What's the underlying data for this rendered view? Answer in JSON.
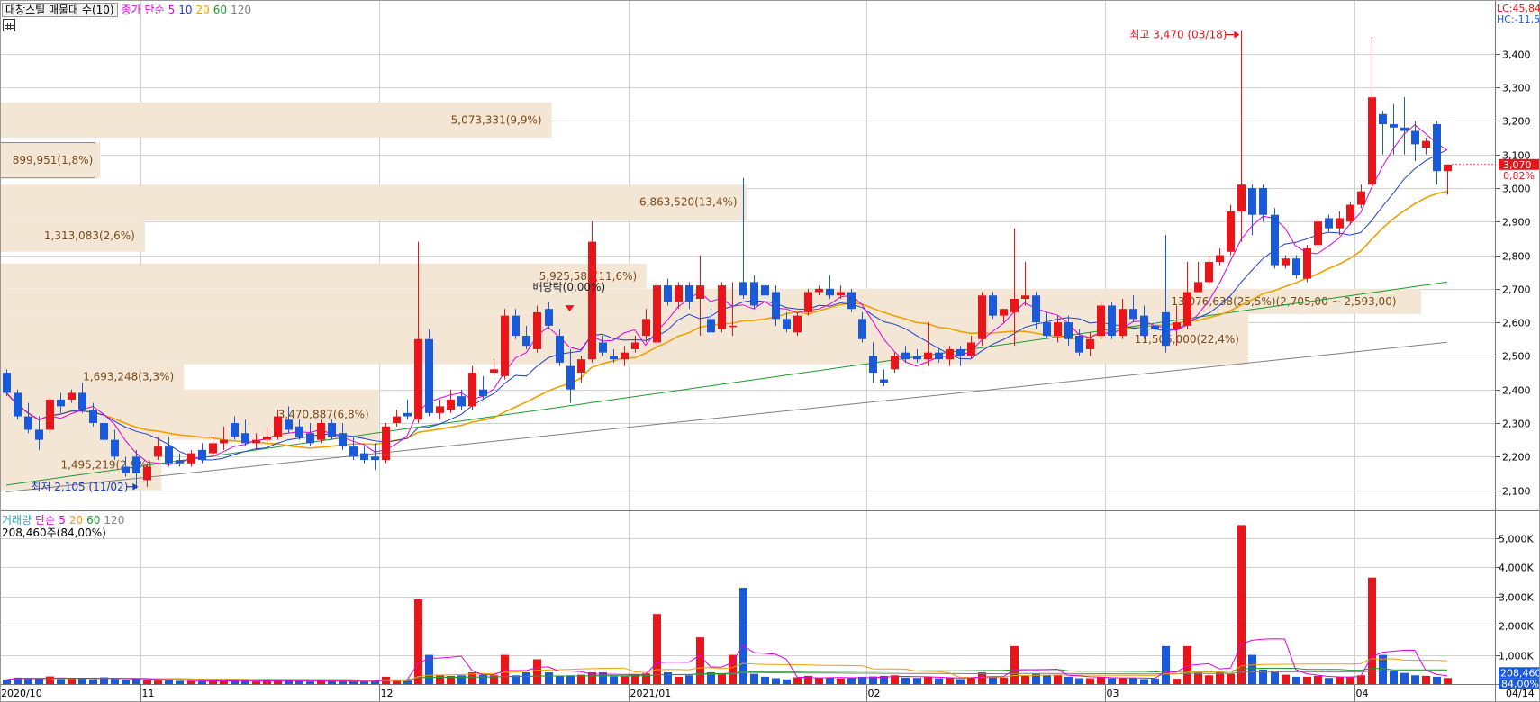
{
  "price_legend": {
    "title": "대창스틸 매물대 수(10)",
    "ma_label": "종가 단순",
    "periods": [
      "5",
      "10",
      "20",
      "60",
      "120"
    ],
    "colors": [
      "#e000e0",
      "#1f3fd0",
      "#f0a000",
      "#1f9a2f",
      "#808080"
    ]
  },
  "volume_legend": {
    "label": "거래량",
    "ma_label": "단순",
    "periods": [
      "5",
      "20",
      "60",
      "120"
    ],
    "colors": [
      "#e000e0",
      "#f0a000",
      "#1f9a2f",
      "#808080"
    ],
    "current": "208,460주(84,00%)"
  },
  "right_info": {
    "lc": "LC:45,84",
    "hc": "HC:-11,5"
  },
  "current_price": {
    "value": "3,070",
    "change": "0,82%"
  },
  "current_volume": {
    "value": "208,460",
    "pct": "84,00%"
  },
  "annotations": {
    "high": "최고 3,470 (03/18)",
    "low": "최저 2,105 (11/02)",
    "dividend": "배당락(0,00%)"
  },
  "x_labels": [
    "2020/10",
    "11",
    "12",
    "2021/01",
    "02",
    "03",
    "04",
    "04/14"
  ],
  "colors": {
    "up": "#e8161b",
    "down": "#1a5ad8",
    "band": "#f3e6d5",
    "band_text": "#7a4a1a",
    "grid": "#d0d0d0"
  },
  "chart_data": {
    "type": "candlestick",
    "price_axis": {
      "ylim": [
        2040,
        3560
      ],
      "ticks": [
        "2,100",
        "2,200",
        "2,300",
        "2,400",
        "2,500",
        "2,600",
        "2,700",
        "2,800",
        "2,900",
        "3,000",
        "3,100",
        "3,200",
        "3,300",
        "3,400"
      ]
    },
    "volume_axis": {
      "ylim": [
        0,
        5800
      ],
      "ticks": [
        "1,000K",
        "2,000K",
        "3,000K",
        "4,000K",
        "5,000K"
      ]
    },
    "volume_profile": [
      {
        "low": 2100,
        "high": 2250,
        "label": "1,495,219(2,9%)"
      },
      {
        "low": 2250,
        "high": 2400,
        "label": "3,470,887(6,8%)"
      },
      {
        "low": 2400,
        "high": 2475,
        "label": "1,693,248(3,3%)"
      },
      {
        "low": 2475,
        "high": 2625,
        "label": "11,505,000(22,4%)"
      },
      {
        "low": 2625,
        "high": 2700,
        "label": "13,076,638(25,5%)(2,705,00 ~ 2,593,00)"
      },
      {
        "low": 2700,
        "high": 2775,
        "label": "5,925,588(11,6%)"
      },
      {
        "low": 2810,
        "high": 2905,
        "label": "1,313,083(2,6%)"
      },
      {
        "low": 2905,
        "high": 3010,
        "label": "6,863,520(13,4%)"
      },
      {
        "low": 3030,
        "high": 3135,
        "label": "899,951(1,8%)"
      },
      {
        "low": 3150,
        "high": 3255,
        "label": "5,073,331(9,9%)"
      }
    ],
    "candles": [
      {
        "o": 2450,
        "h": 2460,
        "c": 2390,
        "l": 2380,
        "v": 150
      },
      {
        "o": 2390,
        "h": 2400,
        "c": 2320,
        "l": 2310,
        "v": 220
      },
      {
        "o": 2320,
        "h": 2360,
        "c": 2280,
        "l": 2270,
        "v": 200
      },
      {
        "o": 2280,
        "h": 2320,
        "c": 2250,
        "l": 2220,
        "v": 180
      },
      {
        "o": 2280,
        "h": 2380,
        "c": 2370,
        "l": 2270,
        "v": 260
      },
      {
        "o": 2370,
        "h": 2390,
        "c": 2350,
        "l": 2330,
        "v": 170
      },
      {
        "o": 2370,
        "h": 2400,
        "c": 2390,
        "l": 2360,
        "v": 190
      },
      {
        "o": 2390,
        "h": 2420,
        "c": 2340,
        "l": 2330,
        "v": 210
      },
      {
        "o": 2340,
        "h": 2360,
        "c": 2300,
        "l": 2290,
        "v": 160
      },
      {
        "o": 2300,
        "h": 2320,
        "c": 2250,
        "l": 2240,
        "v": 230
      },
      {
        "o": 2250,
        "h": 2280,
        "c": 2200,
        "l": 2190,
        "v": 180
      },
      {
        "o": 2170,
        "h": 2200,
        "c": 2150,
        "l": 2140,
        "v": 150
      },
      {
        "o": 2200,
        "h": 2220,
        "c": 2150,
        "l": 2105,
        "v": 190
      },
      {
        "o": 2130,
        "h": 2180,
        "c": 2170,
        "l": 2110,
        "v": 140
      },
      {
        "o": 2200,
        "h": 2260,
        "c": 2230,
        "l": 2190,
        "v": 120
      },
      {
        "o": 2230,
        "h": 2260,
        "c": 2180,
        "l": 2170,
        "v": 130
      },
      {
        "o": 2190,
        "h": 2210,
        "c": 2180,
        "l": 2170,
        "v": 110
      },
      {
        "o": 2180,
        "h": 2220,
        "c": 2210,
        "l": 2170,
        "v": 100
      },
      {
        "o": 2220,
        "h": 2240,
        "c": 2190,
        "l": 2180,
        "v": 95
      },
      {
        "o": 2210,
        "h": 2260,
        "c": 2240,
        "l": 2200,
        "v": 110
      },
      {
        "o": 2240,
        "h": 2290,
        "c": 2250,
        "l": 2220,
        "v": 130
      },
      {
        "o": 2300,
        "h": 2320,
        "c": 2260,
        "l": 2250,
        "v": 120
      },
      {
        "o": 2270,
        "h": 2310,
        "c": 2240,
        "l": 2230,
        "v": 100
      },
      {
        "o": 2240,
        "h": 2270,
        "c": 2250,
        "l": 2220,
        "v": 90
      },
      {
        "o": 2250,
        "h": 2290,
        "c": 2260,
        "l": 2240,
        "v": 95
      },
      {
        "o": 2260,
        "h": 2340,
        "c": 2320,
        "l": 2250,
        "v": 150
      },
      {
        "o": 2310,
        "h": 2350,
        "c": 2280,
        "l": 2270,
        "v": 120
      },
      {
        "o": 2290,
        "h": 2310,
        "c": 2260,
        "l": 2250,
        "v": 100
      },
      {
        "o": 2270,
        "h": 2300,
        "c": 2240,
        "l": 2230,
        "v": 90
      },
      {
        "o": 2250,
        "h": 2310,
        "c": 2300,
        "l": 2240,
        "v": 110
      },
      {
        "o": 2300,
        "h": 2310,
        "c": 2260,
        "l": 2250,
        "v": 95
      },
      {
        "o": 2270,
        "h": 2300,
        "c": 2230,
        "l": 2220,
        "v": 100
      },
      {
        "o": 2230,
        "h": 2260,
        "c": 2200,
        "l": 2190,
        "v": 90
      },
      {
        "o": 2210,
        "h": 2230,
        "c": 2190,
        "l": 2180,
        "v": 85
      },
      {
        "o": 2200,
        "h": 2240,
        "c": 2190,
        "l": 2160,
        "v": 120
      },
      {
        "o": 2190,
        "h": 2300,
        "c": 2290,
        "l": 2180,
        "v": 250
      },
      {
        "o": 2300,
        "h": 2340,
        "c": 2320,
        "l": 2290,
        "v": 140
      },
      {
        "o": 2330,
        "h": 2370,
        "c": 2320,
        "l": 2310,
        "v": 120
      },
      {
        "o": 2310,
        "h": 2840,
        "c": 2550,
        "l": 2300,
        "v": 2900
      },
      {
        "o": 2550,
        "h": 2580,
        "c": 2330,
        "l": 2320,
        "v": 1000
      },
      {
        "o": 2330,
        "h": 2370,
        "c": 2350,
        "l": 2310,
        "v": 300
      },
      {
        "o": 2340,
        "h": 2400,
        "c": 2370,
        "l": 2330,
        "v": 280
      },
      {
        "o": 2380,
        "h": 2400,
        "c": 2350,
        "l": 2340,
        "v": 300
      },
      {
        "o": 2350,
        "h": 2470,
        "c": 2450,
        "l": 2340,
        "v": 400
      },
      {
        "o": 2400,
        "h": 2440,
        "c": 2380,
        "l": 2370,
        "v": 320
      },
      {
        "o": 2450,
        "h": 2490,
        "c": 2460,
        "l": 2440,
        "v": 300
      },
      {
        "o": 2440,
        "h": 2640,
        "c": 2620,
        "l": 2430,
        "v": 1000
      },
      {
        "o": 2620,
        "h": 2640,
        "c": 2560,
        "l": 2550,
        "v": 300
      },
      {
        "o": 2560,
        "h": 2590,
        "c": 2530,
        "l": 2520,
        "v": 400
      },
      {
        "o": 2520,
        "h": 2650,
        "c": 2630,
        "l": 2510,
        "v": 850
      },
      {
        "o": 2640,
        "h": 2660,
        "c": 2590,
        "l": 2580,
        "v": 400
      },
      {
        "o": 2560,
        "h": 2580,
        "c": 2480,
        "l": 2470,
        "v": 280
      },
      {
        "o": 2470,
        "h": 2520,
        "c": 2400,
        "l": 2360,
        "v": 300
      },
      {
        "o": 2450,
        "h": 2500,
        "c": 2490,
        "l": 2420,
        "v": 320
      },
      {
        "o": 2490,
        "h": 2900,
        "c": 2840,
        "l": 2480,
        "v": 400
      },
      {
        "o": 2540,
        "h": 2560,
        "c": 2510,
        "l": 2500,
        "v": 400
      },
      {
        "o": 2500,
        "h": 2520,
        "c": 2490,
        "l": 2480,
        "v": 260
      },
      {
        "o": 2490,
        "h": 2530,
        "c": 2510,
        "l": 2470,
        "v": 260
      },
      {
        "o": 2520,
        "h": 2560,
        "c": 2540,
        "l": 2510,
        "v": 340
      },
      {
        "o": 2560,
        "h": 2640,
        "c": 2610,
        "l": 2540,
        "v": 360
      },
      {
        "o": 2540,
        "h": 2720,
        "c": 2710,
        "l": 2530,
        "v": 2400
      },
      {
        "o": 2710,
        "h": 2730,
        "c": 2660,
        "l": 2650,
        "v": 400
      },
      {
        "o": 2660,
        "h": 2720,
        "c": 2710,
        "l": 2640,
        "v": 250
      },
      {
        "o": 2710,
        "h": 2720,
        "c": 2660,
        "l": 2640,
        "v": 300
      },
      {
        "o": 2670,
        "h": 2800,
        "c": 2710,
        "l": 2560,
        "v": 1600
      },
      {
        "o": 2610,
        "h": 2640,
        "c": 2570,
        "l": 2560,
        "v": 400
      },
      {
        "o": 2580,
        "h": 2720,
        "c": 2710,
        "l": 2570,
        "v": 350
      },
      {
        "o": 2590,
        "h": 2720,
        "c": 2590,
        "l": 2560,
        "v": 1000
      },
      {
        "o": 2720,
        "h": 3030,
        "c": 2680,
        "l": 2670,
        "v": 3300
      },
      {
        "o": 2720,
        "h": 2740,
        "c": 2650,
        "l": 2640,
        "v": 350
      },
      {
        "o": 2710,
        "h": 2720,
        "c": 2680,
        "l": 2670,
        "v": 250
      },
      {
        "o": 2690,
        "h": 2710,
        "c": 2610,
        "l": 2590,
        "v": 200
      },
      {
        "o": 2610,
        "h": 2630,
        "c": 2580,
        "l": 2570,
        "v": 160
      },
      {
        "o": 2570,
        "h": 2630,
        "c": 2620,
        "l": 2560,
        "v": 230
      },
      {
        "o": 2630,
        "h": 2700,
        "c": 2690,
        "l": 2620,
        "v": 280
      },
      {
        "o": 2690,
        "h": 2710,
        "c": 2700,
        "l": 2680,
        "v": 200
      },
      {
        "o": 2700,
        "h": 2740,
        "c": 2680,
        "l": 2670,
        "v": 220
      },
      {
        "o": 2680,
        "h": 2710,
        "c": 2690,
        "l": 2670,
        "v": 190
      },
      {
        "o": 2690,
        "h": 2700,
        "c": 2640,
        "l": 2630,
        "v": 210
      },
      {
        "o": 2610,
        "h": 2630,
        "c": 2550,
        "l": 2540,
        "v": 250
      },
      {
        "o": 2500,
        "h": 2540,
        "c": 2450,
        "l": 2420,
        "v": 260
      },
      {
        "o": 2430,
        "h": 2460,
        "c": 2420,
        "l": 2410,
        "v": 280
      },
      {
        "o": 2460,
        "h": 2510,
        "c": 2500,
        "l": 2450,
        "v": 300
      },
      {
        "o": 2510,
        "h": 2530,
        "c": 2490,
        "l": 2480,
        "v": 220
      },
      {
        "o": 2500,
        "h": 2520,
        "c": 2490,
        "l": 2480,
        "v": 210
      },
      {
        "o": 2490,
        "h": 2600,
        "c": 2510,
        "l": 2470,
        "v": 240
      },
      {
        "o": 2510,
        "h": 2520,
        "c": 2490,
        "l": 2480,
        "v": 200
      },
      {
        "o": 2490,
        "h": 2530,
        "c": 2520,
        "l": 2470,
        "v": 230
      },
      {
        "o": 2520,
        "h": 2530,
        "c": 2500,
        "l": 2470,
        "v": 170
      },
      {
        "o": 2500,
        "h": 2560,
        "c": 2540,
        "l": 2490,
        "v": 220
      },
      {
        "o": 2550,
        "h": 2690,
        "c": 2680,
        "l": 2530,
        "v": 400
      },
      {
        "o": 2680,
        "h": 2690,
        "c": 2620,
        "l": 2610,
        "v": 250
      },
      {
        "o": 2620,
        "h": 2640,
        "c": 2640,
        "l": 2600,
        "v": 220
      },
      {
        "o": 2630,
        "h": 2880,
        "c": 2670,
        "l": 2530,
        "v": 1300
      },
      {
        "o": 2670,
        "h": 2780,
        "c": 2680,
        "l": 2650,
        "v": 300
      },
      {
        "o": 2680,
        "h": 2690,
        "c": 2600,
        "l": 2580,
        "v": 350
      },
      {
        "o": 2600,
        "h": 2630,
        "c": 2560,
        "l": 2550,
        "v": 300
      },
      {
        "o": 2560,
        "h": 2620,
        "c": 2600,
        "l": 2540,
        "v": 300
      },
      {
        "o": 2600,
        "h": 2620,
        "c": 2550,
        "l": 2530,
        "v": 250
      },
      {
        "o": 2560,
        "h": 2580,
        "c": 2510,
        "l": 2500,
        "v": 200
      },
      {
        "o": 2520,
        "h": 2570,
        "c": 2550,
        "l": 2500,
        "v": 200
      },
      {
        "o": 2560,
        "h": 2660,
        "c": 2650,
        "l": 2550,
        "v": 250
      },
      {
        "o": 2650,
        "h": 2660,
        "c": 2560,
        "l": 2550,
        "v": 200
      },
      {
        "o": 2560,
        "h": 2670,
        "c": 2640,
        "l": 2550,
        "v": 210
      },
      {
        "o": 2640,
        "h": 2680,
        "c": 2610,
        "l": 2600,
        "v": 210
      },
      {
        "o": 2620,
        "h": 2650,
        "c": 2560,
        "l": 2550,
        "v": 170
      },
      {
        "o": 2590,
        "h": 2610,
        "c": 2580,
        "l": 2570,
        "v": 190
      },
      {
        "o": 2630,
        "h": 2860,
        "c": 2530,
        "l": 2510,
        "v": 1300
      },
      {
        "o": 2580,
        "h": 2650,
        "c": 2600,
        "l": 2530,
        "v": 180
      },
      {
        "o": 2590,
        "h": 2780,
        "c": 2690,
        "l": 2580,
        "v": 1300
      },
      {
        "o": 2690,
        "h": 2780,
        "c": 2720,
        "l": 2690,
        "v": 400
      },
      {
        "o": 2720,
        "h": 2800,
        "c": 2780,
        "l": 2710,
        "v": 300
      },
      {
        "o": 2780,
        "h": 2820,
        "c": 2800,
        "l": 2770,
        "v": 400
      },
      {
        "o": 2810,
        "h": 2950,
        "c": 2930,
        "l": 2800,
        "v": 350
      },
      {
        "o": 2930,
        "h": 3470,
        "c": 3010,
        "l": 2840,
        "v": 5450
      },
      {
        "o": 3000,
        "h": 3010,
        "c": 2920,
        "l": 2860,
        "v": 1000
      },
      {
        "o": 3000,
        "h": 3010,
        "c": 2920,
        "l": 2900,
        "v": 500
      },
      {
        "o": 2920,
        "h": 2940,
        "c": 2770,
        "l": 2760,
        "v": 450
      },
      {
        "o": 2770,
        "h": 2800,
        "c": 2790,
        "l": 2760,
        "v": 320
      },
      {
        "o": 2790,
        "h": 2800,
        "c": 2740,
        "l": 2730,
        "v": 250
      },
      {
        "o": 2730,
        "h": 2830,
        "c": 2820,
        "l": 2720,
        "v": 250
      },
      {
        "o": 2830,
        "h": 2910,
        "c": 2900,
        "l": 2820,
        "v": 280
      },
      {
        "o": 2910,
        "h": 2920,
        "c": 2880,
        "l": 2870,
        "v": 210
      },
      {
        "o": 2880,
        "h": 2930,
        "c": 2910,
        "l": 2860,
        "v": 250
      },
      {
        "o": 2900,
        "h": 2960,
        "c": 2950,
        "l": 2890,
        "v": 230
      },
      {
        "o": 2950,
        "h": 3010,
        "c": 2990,
        "l": 2940,
        "v": 300
      },
      {
        "o": 3010,
        "h": 3450,
        "c": 3270,
        "l": 3000,
        "v": 3650
      },
      {
        "o": 3220,
        "h": 3230,
        "c": 3190,
        "l": 3100,
        "v": 1000
      },
      {
        "o": 3190,
        "h": 3250,
        "c": 3180,
        "l": 3100,
        "v": 450
      },
      {
        "o": 3180,
        "h": 3270,
        "c": 3170,
        "l": 3100,
        "v": 380
      },
      {
        "o": 3170,
        "h": 3200,
        "c": 3130,
        "l": 3080,
        "v": 300
      },
      {
        "o": 3120,
        "h": 3150,
        "c": 3140,
        "l": 3100,
        "v": 280
      },
      {
        "o": 3190,
        "h": 3200,
        "c": 3050,
        "l": 3010,
        "v": 250
      },
      {
        "o": 3050,
        "h": 3070,
        "c": 3070,
        "l": 2980,
        "v": 208
      }
    ]
  }
}
